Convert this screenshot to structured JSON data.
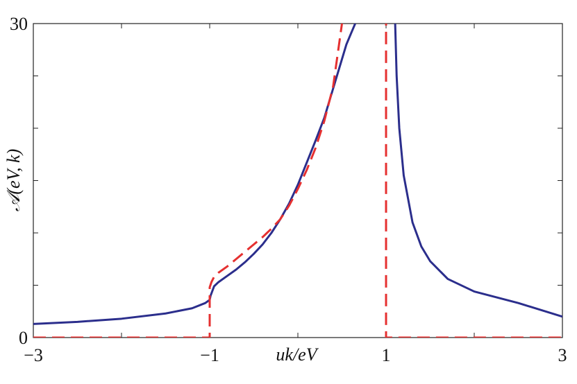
{
  "chart_data": {
    "type": "line",
    "title": "",
    "xlabel": "uk/eV",
    "ylabel": "𝒜(eV, k)",
    "xlim": [
      -3,
      3
    ],
    "ylim": [
      0,
      30
    ],
    "x_ticks": [
      -3,
      -2,
      -1,
      0,
      1,
      2,
      3
    ],
    "x_tick_labels": [
      "−3",
      "",
      "−1",
      "",
      "1",
      "",
      "3"
    ],
    "y_ticks": [
      0,
      5,
      10,
      15,
      20,
      25,
      30
    ],
    "y_tick_labels": [
      "0",
      "",
      "",
      "",
      "",
      "",
      "30"
    ],
    "grid": false,
    "legend": "none",
    "series": [
      {
        "style": "solid",
        "color": "#2b2e8c",
        "x": [
          -3.0,
          -2.5,
          -2.0,
          -1.5,
          -1.2,
          -1.05,
          -1.0,
          -0.99,
          -0.95,
          -0.9,
          -0.8,
          -0.7,
          -0.6,
          -0.5,
          -0.4,
          -0.3,
          -0.2,
          -0.1,
          0.0,
          0.1,
          0.2,
          0.3,
          0.4,
          0.5,
          0.55,
          0.6,
          0.65,
          0.7
        ],
        "y": [
          1.3,
          1.5,
          1.8,
          2.3,
          2.8,
          3.3,
          3.6,
          4.0,
          4.9,
          5.3,
          5.9,
          6.5,
          7.2,
          8.0,
          8.9,
          10.0,
          11.3,
          12.8,
          14.6,
          16.7,
          18.8,
          21.0,
          23.8,
          26.6,
          28.0,
          29.0,
          30.0,
          31.0
        ]
      },
      {
        "style": "solid",
        "color": "#2b2e8c",
        "x": [
          1.1,
          1.12,
          1.15,
          1.2,
          1.3,
          1.4,
          1.5,
          1.7,
          2.0,
          2.5,
          3.0
        ],
        "y": [
          31.0,
          25.0,
          20.0,
          15.5,
          11.0,
          8.7,
          7.3,
          5.6,
          4.4,
          3.3,
          2.0
        ]
      },
      {
        "style": "dashed",
        "color": "#e53030",
        "x": [
          -3.0,
          -1.0,
          -1.0,
          -0.98,
          -0.95,
          -0.9,
          -0.8,
          -0.7,
          -0.6,
          -0.5,
          -0.4,
          -0.3,
          -0.2,
          -0.1,
          0.0,
          0.1,
          0.2,
          0.3,
          0.4,
          0.45,
          0.5,
          0.6
        ],
        "y": [
          0.0,
          0.0,
          4.8,
          5.3,
          5.8,
          6.2,
          6.8,
          7.5,
          8.2,
          8.9,
          9.6,
          10.4,
          11.3,
          12.6,
          14.2,
          16.0,
          18.1,
          20.7,
          24.0,
          27.0,
          30.0,
          31.0
        ]
      },
      {
        "style": "dashed",
        "color": "#e53030",
        "x": [
          1.0,
          1.0,
          3.0
        ],
        "y": [
          31.0,
          0.0,
          0.0
        ]
      }
    ]
  }
}
